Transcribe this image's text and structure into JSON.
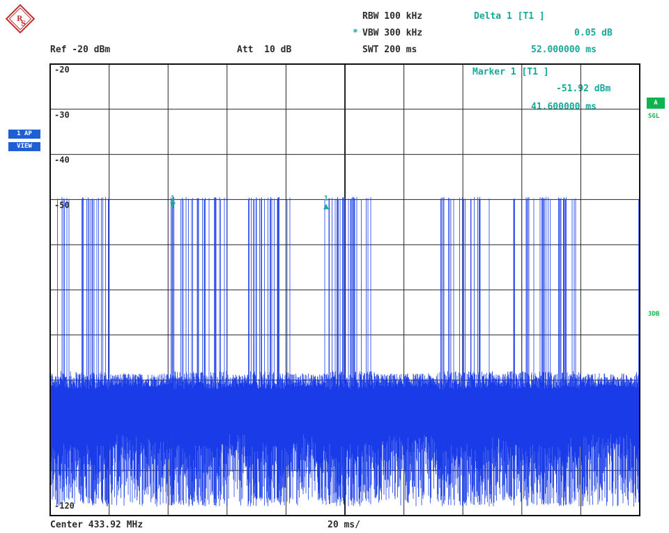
{
  "header": {
    "ref": "Ref -20 dBm",
    "att": "Att  10 dB",
    "rbw": "RBW 100 kHz",
    "vbw": "VBW 300 kHz",
    "vbw_flag": "*",
    "swt": "SWT 200 ms"
  },
  "markers": {
    "delta_label": "Delta 1 [T1 ]",
    "delta_level": "0.05 dB",
    "delta_time": "52.000000 ms",
    "marker_label": "Marker 1 [T1 ]",
    "marker_level": "-51.92 dBm",
    "marker_time": "41.600000 ms",
    "m1_tag": "1",
    "d1_tag": "1"
  },
  "badges": {
    "trace_mode": "1 AP",
    "view": "VIEW",
    "a_label": "A",
    "sgl": "SGL",
    "three_db": "3DB"
  },
  "footer": {
    "center": "Center 433.92 MHz",
    "span": "20 ms/"
  },
  "colors": {
    "trace": "#1a3ce8",
    "grid": "#222222",
    "marker": "#16a89a"
  },
  "chart_data": {
    "type": "line",
    "title": "",
    "xlabel": "",
    "ylabel": "",
    "x_unit": "ms",
    "xlim": [
      0,
      200
    ],
    "ylim": [
      -120,
      -20
    ],
    "grid": true,
    "y_ticks": [
      {
        "value": -20,
        "label": "-20"
      },
      {
        "value": -30,
        "label": "-30"
      },
      {
        "value": -40,
        "label": "-40"
      },
      {
        "value": -50,
        "label": "-50"
      },
      {
        "value": -120,
        "label": "-120"
      }
    ],
    "series": [
      {
        "pulse_level": -50,
        "noise_level": -90,
        "noise_floor": -118,
        "bursts_ms": [
          [
            0,
            20
          ],
          [
            41,
            60
          ],
          [
            67,
            82
          ],
          [
            93,
            110
          ],
          [
            132,
            150
          ],
          [
            155,
            176
          ],
          [
            177,
            180
          ],
          [
            198.5,
            200
          ]
        ]
      }
    ],
    "marker_positions_ms": [
      41.6,
      93.6
    ]
  }
}
